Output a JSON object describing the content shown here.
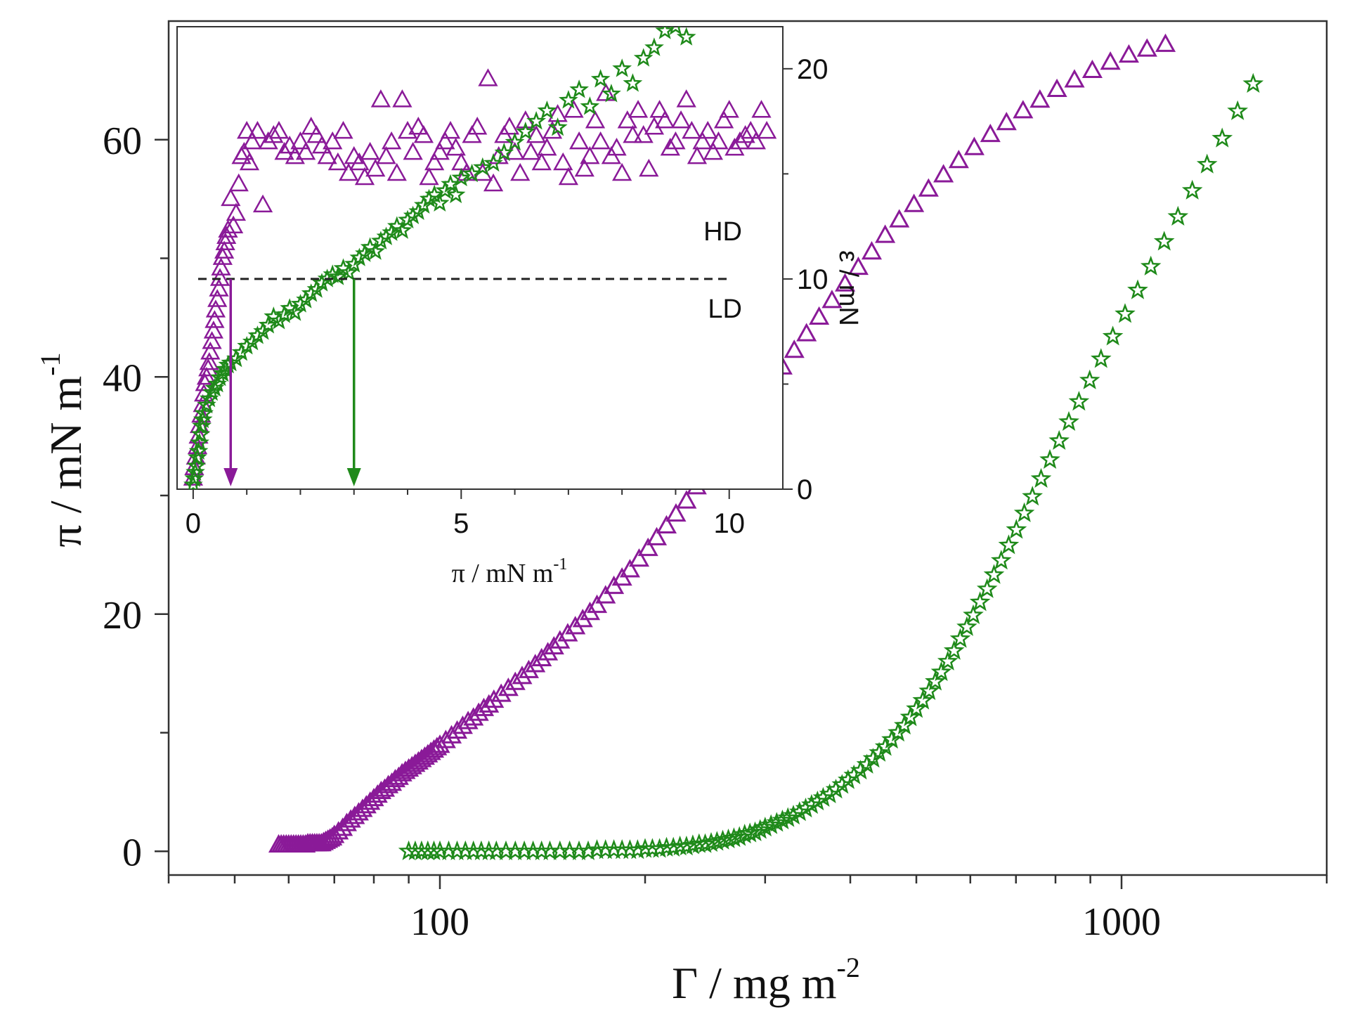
{
  "colors": {
    "purple": "#8a1a98",
    "green": "#1f8a1a",
    "axis": "#333333"
  },
  "chart_data": [
    {
      "id": "main",
      "type": "scatter",
      "x_scale": "log",
      "xlim": [
        40,
        2000
      ],
      "ylim": [
        -2,
        70
      ],
      "xlabel": "Γ / mg m",
      "xlabel_sup": "-2",
      "ylabel": "π / mN m",
      "ylabel_sup": "-1",
      "x_ticks": [
        100,
        1000
      ],
      "x_tick_labels": [
        "100",
        "1000"
      ],
      "y_ticks": [
        0,
        20,
        40,
        60
      ],
      "y_tick_labels": [
        "0",
        "20",
        "40",
        "60"
      ],
      "grid": false,
      "series": [
        {
          "marker": "triangle",
          "color": "#8a1a98",
          "x": [
            58,
            58.5,
            59,
            59.5,
            60,
            60.5,
            61,
            61.5,
            62,
            62.5,
            63,
            63.5,
            64,
            64.5,
            65,
            65.5,
            66,
            66.5,
            67,
            67.5,
            68,
            68.5,
            69,
            69.5,
            70,
            71,
            72,
            73,
            74,
            75,
            76,
            77,
            78,
            79,
            80,
            81,
            82,
            83,
            84,
            85,
            86,
            87,
            88,
            89,
            90,
            91,
            92,
            93,
            94,
            95,
            96,
            97,
            98,
            99,
            100,
            102,
            104,
            106,
            108,
            110,
            112,
            114,
            116,
            118,
            120,
            123,
            126,
            129,
            132,
            135,
            138,
            141,
            144,
            147,
            150,
            154,
            158,
            162,
            166,
            170,
            175,
            180,
            185,
            190,
            196,
            202,
            208,
            215,
            222,
            230,
            238,
            246,
            255,
            264,
            274,
            284,
            295,
            306,
            318,
            331,
            345,
            360,
            376,
            393,
            411,
            430,
            450,
            472,
            496,
            521,
            548,
            577,
            608,
            642,
            678,
            717,
            759,
            804,
            853,
            906,
            963,
            1025,
            1090,
            1160
          ],
          "y": [
            0.5,
            0.5,
            0.5,
            0.5,
            0.5,
            0.5,
            0.5,
            0.5,
            0.5,
            0.5,
            0.5,
            0.5,
            0.6,
            0.6,
            0.6,
            0.6,
            0.6,
            0.6,
            0.6,
            0.7,
            0.8,
            0.9,
            1.0,
            1.1,
            1.3,
            1.6,
            1.9,
            2.3,
            2.6,
            2.9,
            3.2,
            3.5,
            3.8,
            4.1,
            4.4,
            4.7,
            5.0,
            5.2,
            5.5,
            5.7,
            6.0,
            6.2,
            6.5,
            6.7,
            6.9,
            7.1,
            7.3,
            7.5,
            7.7,
            7.9,
            8.1,
            8.3,
            8.5,
            8.7,
            8.9,
            9.3,
            9.7,
            10.1,
            10.5,
            10.9,
            11.2,
            11.6,
            12.0,
            12.3,
            12.7,
            13.2,
            13.7,
            14.2,
            14.7,
            15.2,
            15.7,
            16.2,
            16.7,
            17.2,
            17.7,
            18.3,
            18.9,
            19.5,
            20.1,
            20.7,
            21.5,
            22.3,
            23.0,
            23.7,
            24.6,
            25.5,
            26.4,
            27.4,
            28.4,
            29.5,
            30.7,
            31.8,
            33.0,
            34.2,
            35.5,
            36.8,
            38.1,
            39.4,
            40.8,
            42.2,
            43.6,
            45.0,
            46.4,
            47.8,
            49.2,
            50.5,
            51.9,
            53.2,
            54.5,
            55.8,
            57.0,
            58.2,
            59.3,
            60.4,
            61.4,
            62.4,
            63.3,
            64.2,
            65.0,
            65.8,
            66.5,
            67.1,
            67.6,
            68.0
          ]
        },
        {
          "marker": "star",
          "color": "#1f8a1a",
          "x": [
            90,
            92,
            94,
            96,
            98,
            100,
            103,
            106,
            109,
            112,
            115,
            118,
            121,
            125,
            129,
            133,
            137,
            141,
            145,
            150,
            155,
            160,
            165,
            170,
            175,
            180,
            185,
            190,
            195,
            200,
            205,
            210,
            215,
            220,
            225,
            230,
            235,
            240,
            245,
            250,
            255,
            260,
            265,
            270,
            275,
            280,
            285,
            290,
            295,
            300,
            306,
            312,
            318,
            324,
            330,
            337,
            344,
            351,
            358,
            365,
            373,
            381,
            389,
            397,
            405,
            414,
            423,
            432,
            441,
            450,
            460,
            470,
            480,
            490,
            500,
            511,
            522,
            533,
            544,
            556,
            568,
            580,
            593,
            606,
            620,
            635,
            650,
            666,
            683,
            701,
            720,
            740,
            762,
            785,
            810,
            837,
            866,
            898,
            933,
            971,
            1012,
            1056,
            1104,
            1155,
            1210,
            1270,
            1335,
            1405,
            1480,
            1560
          ],
          "y": [
            0.0,
            0.0,
            0.0,
            0.0,
            0.0,
            0.0,
            0.0,
            0.0,
            0.0,
            0.0,
            0.0,
            0.0,
            0.0,
            0.0,
            0.0,
            0.0,
            0.0,
            0.0,
            0.0,
            0.0,
            0.0,
            0.0,
            0.0,
            0.1,
            0.1,
            0.1,
            0.1,
            0.1,
            0.1,
            0.2,
            0.2,
            0.2,
            0.3,
            0.3,
            0.4,
            0.4,
            0.5,
            0.6,
            0.6,
            0.7,
            0.8,
            0.9,
            1.0,
            1.1,
            1.2,
            1.4,
            1.5,
            1.6,
            1.8,
            2.0,
            2.2,
            2.4,
            2.6,
            2.8,
            3.0,
            3.3,
            3.6,
            3.9,
            4.2,
            4.5,
            4.8,
            5.2,
            5.6,
            6.0,
            6.4,
            6.8,
            7.3,
            7.8,
            8.3,
            8.8,
            9.4,
            10.0,
            10.6,
            11.3,
            12.0,
            12.7,
            13.5,
            14.3,
            15.1,
            16.0,
            16.9,
            17.9,
            18.9,
            19.9,
            21.0,
            22.1,
            23.3,
            24.5,
            25.8,
            27.1,
            28.5,
            29.9,
            31.4,
            33.0,
            34.6,
            36.2,
            37.9,
            39.7,
            41.5,
            43.4,
            45.3,
            47.3,
            49.3,
            51.4,
            53.5,
            55.7,
            57.9,
            60.1,
            62.4,
            64.7
          ]
        }
      ]
    },
    {
      "id": "inset",
      "type": "scatter",
      "xlim": [
        -0.3,
        11
      ],
      "ylim": [
        0,
        22
      ],
      "xlabel": "π / mN m",
      "xlabel_sup": "-1",
      "ylabel": "ε / mN",
      "y_axis_side": "right",
      "x_ticks": [
        0,
        5,
        10
      ],
      "x_tick_labels": [
        "0",
        "5",
        "10"
      ],
      "y_ticks": [
        0,
        10,
        20
      ],
      "y_tick_labels": [
        "0",
        "10",
        "20"
      ],
      "threshold_line": {
        "y": 10,
        "style": "dashed"
      },
      "region_labels": [
        "HD",
        "LD"
      ],
      "arrows": [
        {
          "x": 0.7,
          "y_from": 10,
          "y_to": 0,
          "color": "#8a1a98"
        },
        {
          "x": 3.0,
          "y_from": 10,
          "y_to": 0,
          "color": "#1f8a1a"
        }
      ],
      "series": [
        {
          "marker": "triangle",
          "color": "#8a1a98",
          "x": [
            0.0,
            0.02,
            0.05,
            0.08,
            0.1,
            0.12,
            0.15,
            0.18,
            0.2,
            0.22,
            0.25,
            0.28,
            0.3,
            0.32,
            0.35,
            0.38,
            0.4,
            0.42,
            0.45,
            0.48,
            0.5,
            0.52,
            0.55,
            0.58,
            0.6,
            0.62,
            0.65,
            0.7,
            0.75,
            0.8,
            0.85,
            0.9,
            0.95,
            1.0,
            1.05,
            1.1,
            1.2,
            1.3,
            1.4,
            1.5,
            1.6,
            1.7,
            1.8,
            1.9,
            2.0,
            2.1,
            2.2,
            2.3,
            2.4,
            2.5,
            2.6,
            2.7,
            2.8,
            2.9,
            3.0,
            3.1,
            3.2,
            3.3,
            3.4,
            3.5,
            3.6,
            3.7,
            3.8,
            3.9,
            4.0,
            4.1,
            4.2,
            4.3,
            4.4,
            4.5,
            4.6,
            4.7,
            4.8,
            4.9,
            5.0,
            5.1,
            5.2,
            5.3,
            5.4,
            5.5,
            5.6,
            5.7,
            5.8,
            5.9,
            6.0,
            6.1,
            6.2,
            6.3,
            6.4,
            6.5,
            6.6,
            6.7,
            6.8,
            6.9,
            7.0,
            7.1,
            7.2,
            7.3,
            7.4,
            7.5,
            7.6,
            7.7,
            7.8,
            7.9,
            8.0,
            8.1,
            8.2,
            8.3,
            8.4,
            8.5,
            8.6,
            8.7,
            8.8,
            8.9,
            9.0,
            9.1,
            9.2,
            9.3,
            9.4,
            9.5,
            9.6,
            9.7,
            9.8,
            9.9,
            10.0,
            10.1,
            10.2,
            10.3,
            10.4,
            10.5,
            10.6,
            10.7
          ],
          "y": [
            0.5,
            1.0,
            1.5,
            2.0,
            2.5,
            3.0,
            3.5,
            4.0,
            4.5,
            5.0,
            5.3,
            5.7,
            6.0,
            6.5,
            7.0,
            7.5,
            8.0,
            8.5,
            9.0,
            9.5,
            10.0,
            10.5,
            11.0,
            11.3,
            11.7,
            12.0,
            12.3,
            13.8,
            12.5,
            13.1,
            14.5,
            15.8,
            16.0,
            17.0,
            15.5,
            16.5,
            17.0,
            13.5,
            16.5,
            16.8,
            17.0,
            16.0,
            16.3,
            15.8,
            16.5,
            16.0,
            17.2,
            16.8,
            16.3,
            15.8,
            16.5,
            15.5,
            17.0,
            15.0,
            15.8,
            15.5,
            14.8,
            16.0,
            15.2,
            18.5,
            15.8,
            16.5,
            15.0,
            18.5,
            17.0,
            16.0,
            17.2,
            16.8,
            14.8,
            15.5,
            16.0,
            16.5,
            17.0,
            16.2,
            15.5,
            15.0,
            16.8,
            17.2,
            15.0,
            19.5,
            14.5,
            15.8,
            16.8,
            17.2,
            16.0,
            15.0,
            17.5,
            16.0,
            16.8,
            15.5,
            16.2,
            17.0,
            17.8,
            15.5,
            14.8,
            18.0,
            16.5,
            15.2,
            15.8,
            17.5,
            16.5,
            18.8,
            15.8,
            16.2,
            15.0,
            17.5,
            16.8,
            18.0,
            16.8,
            15.2,
            17.2,
            18.0,
            17.5,
            16.2,
            16.5,
            17.5,
            18.5,
            17.0,
            15.8,
            16.5,
            17.0,
            16.0,
            16.5,
            17.5,
            18.0,
            16.2,
            16.5,
            16.8,
            17.0,
            16.5,
            18.0,
            17.0
          ]
        },
        {
          "marker": "star",
          "color": "#1f8a1a",
          "x": [
            0.0,
            0.02,
            0.04,
            0.06,
            0.08,
            0.1,
            0.12,
            0.14,
            0.16,
            0.18,
            0.2,
            0.25,
            0.3,
            0.35,
            0.4,
            0.45,
            0.5,
            0.55,
            0.6,
            0.65,
            0.7,
            0.8,
            0.9,
            1.0,
            1.1,
            1.2,
            1.3,
            1.4,
            1.5,
            1.6,
            1.7,
            1.8,
            1.9,
            2.0,
            2.1,
            2.2,
            2.3,
            2.4,
            2.5,
            2.6,
            2.7,
            2.8,
            2.9,
            3.0,
            3.1,
            3.2,
            3.3,
            3.4,
            3.5,
            3.6,
            3.7,
            3.8,
            3.9,
            4.0,
            4.1,
            4.2,
            4.3,
            4.4,
            4.5,
            4.6,
            4.7,
            4.8,
            4.9,
            5.0,
            5.2,
            5.4,
            5.6,
            5.8,
            6.0,
            6.2,
            6.4,
            6.6,
            6.8,
            7.0,
            7.2,
            7.4,
            7.6,
            7.8,
            8.0,
            8.2,
            8.4,
            8.6,
            8.8,
            9.0,
            9.2
          ],
          "y": [
            0.2,
            0.5,
            0.8,
            1.1,
            1.5,
            1.8,
            2.2,
            2.6,
            3.0,
            3.3,
            3.6,
            4.0,
            4.3,
            4.6,
            4.8,
            5.0,
            5.3,
            5.5,
            5.7,
            5.9,
            6.0,
            6.2,
            6.5,
            6.8,
            7.0,
            7.3,
            7.5,
            7.8,
            8.2,
            8.0,
            8.3,
            8.6,
            8.4,
            8.8,
            9.0,
            9.3,
            9.5,
            9.8,
            10.0,
            10.2,
            10.1,
            10.5,
            10.3,
            10.7,
            11.0,
            11.2,
            11.5,
            11.3,
            11.8,
            12.0,
            12.2,
            12.5,
            12.3,
            12.8,
            13.0,
            13.2,
            13.5,
            13.8,
            14.0,
            13.6,
            14.2,
            14.5,
            14.0,
            14.8,
            15.0,
            15.3,
            15.5,
            16.0,
            16.5,
            17.0,
            17.5,
            18.0,
            17.2,
            18.5,
            19.0,
            18.2,
            19.5,
            18.8,
            20.0,
            19.3,
            20.5,
            21.0,
            21.8,
            22.0,
            21.5
          ]
        }
      ]
    }
  ]
}
